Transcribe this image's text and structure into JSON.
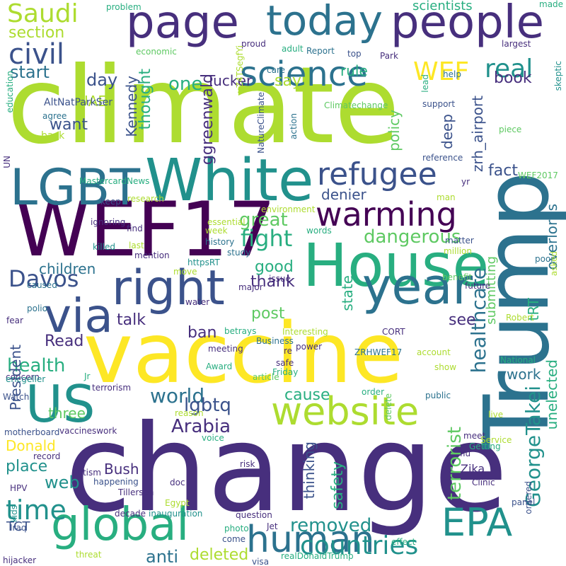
{
  "palette": {
    "dark_purple": "#440154",
    "indigo": "#472f7d",
    "slate_blue": "#3b528b",
    "steel_blue": "#2c728e",
    "teal": "#21918c",
    "green_teal": "#28ae80",
    "green": "#5ec962",
    "lime": "#addc30",
    "yellow": "#fde725"
  },
  "words": [
    {
      "text": "climate",
      "color": "lime"
    },
    {
      "text": "change",
      "color": "indigo"
    },
    {
      "text": "vaccine",
      "color": "yellow"
    },
    {
      "text": "Trump",
      "color": "steel_blue"
    },
    {
      "text": "WEF17",
      "color": "dark_purple"
    },
    {
      "text": "House",
      "color": "green_teal"
    },
    {
      "text": "White",
      "color": "teal"
    },
    {
      "text": "LGBT",
      "color": "steel_blue"
    },
    {
      "text": "right",
      "color": "slate_blue"
    },
    {
      "text": "US",
      "color": "teal"
    },
    {
      "text": "website",
      "color": "lime"
    },
    {
      "text": "page",
      "color": "indigo"
    },
    {
      "text": "people",
      "color": "indigo"
    },
    {
      "text": "today",
      "color": "steel_blue"
    },
    {
      "text": "warming",
      "color": "dark_purple"
    },
    {
      "text": "year",
      "color": "steel_blue"
    },
    {
      "text": "via",
      "color": "slate_blue"
    },
    {
      "text": "global",
      "color": "green_teal"
    },
    {
      "text": "human",
      "color": "steel_blue"
    },
    {
      "text": "EPA",
      "color": "teal"
    },
    {
      "text": "countries",
      "color": "teal"
    },
    {
      "text": "science",
      "color": "steel_blue"
    },
    {
      "text": "refugee",
      "color": "slate_blue"
    },
    {
      "text": "Saudi",
      "color": "lime"
    },
    {
      "text": "civil",
      "color": "slate_blue"
    },
    {
      "text": "WEF",
      "color": "yellow"
    },
    {
      "text": "real",
      "color": "teal"
    },
    {
      "text": "Davos",
      "color": "slate_blue"
    },
    {
      "text": "time",
      "color": "teal"
    },
    {
      "text": "fight",
      "color": "green_teal"
    },
    {
      "text": "dangerous",
      "color": "green"
    },
    {
      "text": "great",
      "color": "green"
    },
    {
      "text": "health",
      "color": "green_teal"
    },
    {
      "text": "world",
      "color": "steel_blue"
    },
    {
      "text": "lgbtq",
      "color": "slate_blue"
    },
    {
      "text": "Arabia",
      "color": "indigo"
    },
    {
      "text": "healthcare",
      "color": "steel_blue"
    },
    {
      "text": "GeorgeTakei",
      "color": "teal"
    },
    {
      "text": "terrorist",
      "color": "green"
    },
    {
      "text": "removed",
      "color": "teal"
    },
    {
      "text": "deleted",
      "color": "lime"
    },
    {
      "text": "anti",
      "color": "steel_blue"
    },
    {
      "text": "one",
      "color": "green_teal"
    },
    {
      "text": "section",
      "color": "lime"
    },
    {
      "text": "start",
      "color": "steel_blue"
    },
    {
      "text": "day",
      "color": "slate_blue"
    },
    {
      "text": "want",
      "color": "slate_blue"
    },
    {
      "text": "UAE",
      "color": "lime"
    },
    {
      "text": "thought",
      "color": "green_teal"
    },
    {
      "text": "Kennedy",
      "color": "slate_blue"
    },
    {
      "text": "ggreenwald",
      "color": "indigo"
    },
    {
      "text": "Tucker",
      "color": "indigo"
    },
    {
      "text": "say",
      "color": "lime"
    },
    {
      "text": "rule",
      "color": "green_teal"
    },
    {
      "text": "scientists",
      "color": "green_teal"
    },
    {
      "text": "zrh_airport",
      "color": "slate_blue"
    },
    {
      "text": "policy",
      "color": "green"
    },
    {
      "text": "deep",
      "color": "slate_blue"
    },
    {
      "text": "book",
      "color": "indigo"
    },
    {
      "text": "fact",
      "color": "slate_blue"
    },
    {
      "text": "denier",
      "color": "slate_blue"
    },
    {
      "text": "overlords",
      "color": "steel_blue"
    },
    {
      "text": "post",
      "color": "green"
    },
    {
      "text": "thank",
      "color": "indigo"
    },
    {
      "text": "state",
      "color": "green_teal"
    },
    {
      "text": "see",
      "color": "indigo"
    },
    {
      "text": "submitting",
      "color": "green"
    },
    {
      "text": "children",
      "color": "steel_blue"
    },
    {
      "text": "talk",
      "color": "indigo"
    },
    {
      "text": "ban",
      "color": "indigo"
    },
    {
      "text": "good",
      "color": "green_teal"
    },
    {
      "text": "tRT",
      "color": "green_teal"
    },
    {
      "text": "work",
      "color": "steel_blue"
    },
    {
      "text": "unelected",
      "color": "green_teal"
    },
    {
      "text": "cause",
      "color": "green_teal"
    },
    {
      "text": "Read",
      "color": "indigo"
    },
    {
      "text": "President",
      "color": "slate_blue"
    },
    {
      "text": "three",
      "color": "green"
    },
    {
      "text": "Donald",
      "color": "yellow"
    },
    {
      "text": "place",
      "color": "teal"
    },
    {
      "text": "Bush",
      "color": "indigo"
    },
    {
      "text": "web",
      "color": "teal"
    },
    {
      "text": "thinking",
      "color": "slate_blue"
    },
    {
      "text": "safety",
      "color": "green_teal"
    },
    {
      "text": "TCT",
      "color": "slate_blue"
    },
    {
      "text": "Zika",
      "color": "indigo"
    },
    {
      "text": "problem",
      "color": "green_teal"
    },
    {
      "text": "proud",
      "color": "indigo"
    },
    {
      "text": "adult",
      "color": "green_teal"
    },
    {
      "text": "Report",
      "color": "steel_blue"
    },
    {
      "text": "top",
      "color": "slate_blue"
    },
    {
      "text": "Park",
      "color": "indigo"
    },
    {
      "text": "made",
      "color": "green_teal"
    },
    {
      "text": "largest",
      "color": "indigo"
    },
    {
      "text": "economic",
      "color": "green"
    },
    {
      "text": "uZ4TSegfYi",
      "color": "lime"
    },
    {
      "text": "care",
      "color": "steel_blue"
    },
    {
      "text": "help",
      "color": "steel_blue"
    },
    {
      "text": "back",
      "color": "lime"
    },
    {
      "text": "AltNatParkSer",
      "color": "slate_blue"
    },
    {
      "text": "agree",
      "color": "steel_blue"
    },
    {
      "text": "education",
      "color": "green_teal"
    },
    {
      "text": "Climatechange",
      "color": "green"
    },
    {
      "text": "support",
      "color": "slate_blue"
    },
    {
      "text": "lead",
      "color": "green_teal"
    },
    {
      "text": "piece",
      "color": "green"
    },
    {
      "text": "skeptic",
      "color": "teal"
    },
    {
      "text": "NatureClimate",
      "color": "slate_blue"
    },
    {
      "text": "action",
      "color": "steel_blue"
    },
    {
      "text": "reference",
      "color": "slate_blue"
    },
    {
      "text": "WEF2017",
      "color": "green"
    },
    {
      "text": "yr",
      "color": "indigo"
    },
    {
      "text": "MastercardNews",
      "color": "green_teal"
    },
    {
      "text": "UN",
      "color": "indigo"
    },
    {
      "text": "research",
      "color": "lime"
    },
    {
      "text": "keep",
      "color": "slate_blue"
    },
    {
      "text": "man",
      "color": "lime"
    },
    {
      "text": "environment",
      "color": "lime"
    },
    {
      "text": "ignoring",
      "color": "indigo"
    },
    {
      "text": "find",
      "color": "indigo"
    },
    {
      "text": "essential",
      "color": "lime"
    },
    {
      "text": "week",
      "color": "lime"
    },
    {
      "text": "history",
      "color": "steel_blue"
    },
    {
      "text": "words",
      "color": "green_teal"
    },
    {
      "text": "matter",
      "color": "slate_blue"
    },
    {
      "text": "million",
      "color": "lime"
    },
    {
      "text": "killed",
      "color": "teal"
    },
    {
      "text": "last",
      "color": "lime"
    },
    {
      "text": "mention",
      "color": "indigo"
    },
    {
      "text": "study",
      "color": "steel_blue"
    },
    {
      "text": "httpsRT",
      "color": "teal"
    },
    {
      "text": "move",
      "color": "lime"
    },
    {
      "text": "issue",
      "color": "indigo"
    },
    {
      "text": "major",
      "color": "indigo"
    },
    {
      "text": "benefit",
      "color": "green"
    },
    {
      "text": "future",
      "color": "indigo"
    },
    {
      "text": "poor",
      "color": "steel_blue"
    },
    {
      "text": "asked",
      "color": "lime"
    },
    {
      "text": "caused",
      "color": "steel_blue"
    },
    {
      "text": "polio",
      "color": "steel_blue"
    },
    {
      "text": "fear",
      "color": "indigo"
    },
    {
      "text": "water",
      "color": "indigo"
    },
    {
      "text": "betrays",
      "color": "green_teal"
    },
    {
      "text": "Business",
      "color": "steel_blue"
    },
    {
      "text": "Interesting",
      "color": "lime"
    },
    {
      "text": "CORT",
      "color": "indigo"
    },
    {
      "text": "ZRHWEF17",
      "color": "steel_blue"
    },
    {
      "text": "account",
      "color": "lime"
    },
    {
      "text": "Robert",
      "color": "lime"
    },
    {
      "text": "concern",
      "color": "indigo"
    },
    {
      "text": "power",
      "color": "indigo"
    },
    {
      "text": "re",
      "color": "indigo"
    },
    {
      "text": "article",
      "color": "green"
    },
    {
      "text": "Friday",
      "color": "green_teal"
    },
    {
      "text": "safe",
      "color": "indigo"
    },
    {
      "text": "Award",
      "color": "green_teal"
    },
    {
      "text": "meeting",
      "color": "indigo"
    },
    {
      "text": "show",
      "color": "lime"
    },
    {
      "text": "National",
      "color": "green_teal"
    },
    {
      "text": "Jr",
      "color": "green_teal"
    },
    {
      "text": "ericgeller",
      "color": "teal"
    },
    {
      "text": "terrorism",
      "color": "indigo"
    },
    {
      "text": "Watch",
      "color": "slate_blue"
    },
    {
      "text": "order",
      "color": "green_teal"
    },
    {
      "text": "delete",
      "color": "green"
    },
    {
      "text": "public",
      "color": "steel_blue"
    },
    {
      "text": "live",
      "color": "lime"
    },
    {
      "text": "reason",
      "color": "lime"
    },
    {
      "text": "voice",
      "color": "green_teal"
    },
    {
      "text": "meet",
      "color": "indigo"
    },
    {
      "text": "Getting",
      "color": "green_teal"
    },
    {
      "text": "Service",
      "color": "lime"
    },
    {
      "text": "motherboard",
      "color": "slate_blue"
    },
    {
      "text": "vaccineswork",
      "color": "indigo"
    },
    {
      "text": "flu",
      "color": "indigo"
    },
    {
      "text": "record",
      "color": "indigo"
    },
    {
      "text": "risk",
      "color": "indigo"
    },
    {
      "text": "autism",
      "color": "indigo"
    },
    {
      "text": "doc",
      "color": "indigo"
    },
    {
      "text": "happening",
      "color": "slate_blue"
    },
    {
      "text": "HPV",
      "color": "indigo"
    },
    {
      "text": "Tillerson",
      "color": "indigo"
    },
    {
      "text": "Clinic",
      "color": "indigo"
    },
    {
      "text": "kids",
      "color": "teal"
    },
    {
      "text": "Egypt",
      "color": "lime"
    },
    {
      "text": "panel",
      "color": "slate_blue"
    },
    {
      "text": "ordered",
      "color": "slate_blue"
    },
    {
      "text": "decade",
      "color": "indigo"
    },
    {
      "text": "inauguration",
      "color": "teal"
    },
    {
      "text": "question",
      "color": "indigo"
    },
    {
      "text": "Iraq",
      "color": "slate_blue"
    },
    {
      "text": "photo",
      "color": "green_teal"
    },
    {
      "text": "come",
      "color": "slate_blue"
    },
    {
      "text": "Jet",
      "color": "indigo"
    },
    {
      "text": "effect",
      "color": "green_teal"
    },
    {
      "text": "hijacker",
      "color": "indigo"
    },
    {
      "text": "threat",
      "color": "lime"
    },
    {
      "text": "visa",
      "color": "slate_blue"
    },
    {
      "text": "realDonaldTrump",
      "color": "green_teal"
    }
  ]
}
